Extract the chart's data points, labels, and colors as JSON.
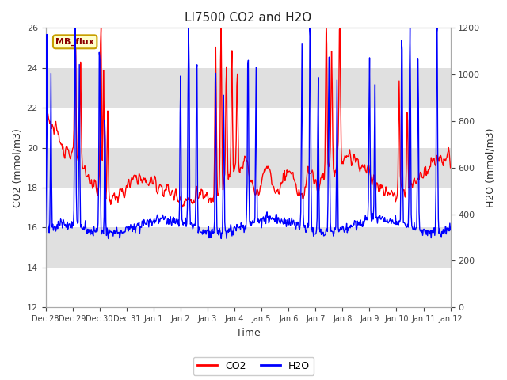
{
  "title": "LI7500 CO2 and H2O",
  "xlabel": "Time",
  "ylabel_left": "CO2 (mmol/m3)",
  "ylabel_right": "H2O (mmol/m3)",
  "ylim_left": [
    12,
    26
  ],
  "ylim_right": [
    0,
    1200
  ],
  "yticks_left": [
    12,
    14,
    16,
    18,
    20,
    22,
    24,
    26
  ],
  "yticks_right": [
    0,
    200,
    400,
    600,
    800,
    1000,
    1200
  ],
  "label_box_text": "MB_flux",
  "legend_co2": "CO2",
  "legend_h2o": "H2O",
  "co2_color": "red",
  "h2o_color": "blue",
  "background_color": "#ffffff",
  "band_color": "#e0e0e0",
  "xtick_labels": [
    "Dec 28",
    "Dec 29",
    "Dec 30",
    "Dec 31",
    "Jan 1",
    "Jan 2",
    "Jan 3",
    "Jan 4",
    "Jan 5",
    "Jan 6",
    "Jan 7",
    "Jan 8",
    "Jan 9",
    "Jan 10",
    "Jan 11",
    "Jan 12"
  ],
  "n_points": 672
}
